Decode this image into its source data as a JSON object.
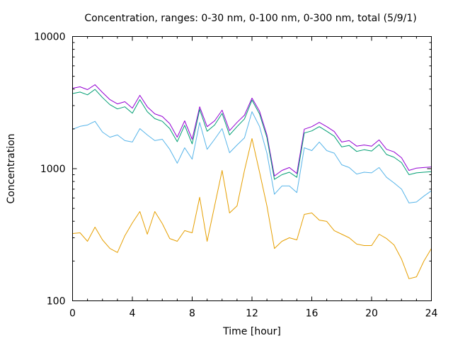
{
  "chart_data": {
    "type": "line",
    "title": "Concentration, ranges: 0-30 nm, 0-100 nm, 0-300 nm, total (5/9/1)",
    "xlabel": "Time [hour]",
    "ylabel": "Concentration",
    "xlim": [
      0,
      24
    ],
    "ylim": [
      100,
      10000
    ],
    "yscale": "log",
    "grid": false,
    "legend": "none",
    "x_ticks": [
      "0",
      "4",
      "8",
      "12",
      "16",
      "20",
      "24"
    ],
    "y_ticks": [
      "100",
      "1000",
      "10000"
    ],
    "x": [
      0,
      0.5,
      1,
      1.5,
      2,
      2.5,
      3,
      3.5,
      4,
      4.5,
      5,
      5.5,
      6,
      6.5,
      7,
      7.5,
      8,
      8.5,
      9,
      9.5,
      10,
      10.5,
      11,
      11.5,
      12,
      12.5,
      13,
      13.5,
      14,
      14.5,
      15,
      15.5,
      16,
      16.5,
      17,
      17.5,
      18,
      18.5,
      19,
      19.5,
      20,
      20.5,
      21,
      21.5,
      22,
      22.5,
      23,
      23.5,
      24
    ],
    "series": [
      {
        "name": "total",
        "color": "#9400d3",
        "values": [
          4060,
          4160,
          3960,
          4320,
          3770,
          3330,
          3090,
          3210,
          2870,
          3590,
          2940,
          2600,
          2480,
          2190,
          1730,
          2300,
          1670,
          2940,
          2080,
          2300,
          2770,
          1940,
          2240,
          2540,
          3420,
          2730,
          1800,
          880,
          970,
          1020,
          920,
          1990,
          2080,
          2240,
          2080,
          1910,
          1590,
          1630,
          1480,
          1510,
          1480,
          1650,
          1400,
          1340,
          1210,
          970,
          1010,
          1020,
          1030
        ]
      },
      {
        "name": "0-300 nm",
        "color": "#009e73",
        "values": [
          3700,
          3800,
          3620,
          3980,
          3450,
          3050,
          2830,
          2940,
          2630,
          3330,
          2700,
          2390,
          2280,
          2010,
          1600,
          2130,
          1540,
          2800,
          1920,
          2140,
          2620,
          1800,
          2080,
          2380,
          3300,
          2600,
          1720,
          830,
          900,
          940,
          860,
          1860,
          1930,
          2080,
          1920,
          1760,
          1460,
          1500,
          1350,
          1390,
          1360,
          1520,
          1280,
          1220,
          1110,
          900,
          930,
          940,
          950
        ]
      },
      {
        "name": "0-100 nm",
        "color": "#56b4e9",
        "values": [
          1985,
          2090,
          2140,
          2280,
          1890,
          1730,
          1800,
          1630,
          1590,
          2010,
          1800,
          1630,
          1670,
          1400,
          1100,
          1440,
          1180,
          2240,
          1400,
          1670,
          2010,
          1320,
          1510,
          1710,
          2700,
          2090,
          1310,
          640,
          740,
          740,
          660,
          1440,
          1370,
          1590,
          1370,
          1310,
          1070,
          1020,
          910,
          940,
          930,
          1020,
          860,
          780,
          700,
          550,
          560,
          620,
          680
        ]
      },
      {
        "name": "0-30 nm",
        "color": "#e69f00",
        "values": [
          323,
          327,
          282,
          361,
          289,
          249,
          232,
          311,
          389,
          474,
          319,
          474,
          384,
          296,
          282,
          340,
          327,
          607,
          282,
          523,
          970,
          462,
          523,
          970,
          1690,
          946,
          523,
          249,
          282,
          300,
          289,
          451,
          462,
          408,
          399,
          340,
          319,
          300,
          269,
          262,
          262,
          319,
          296,
          265,
          207,
          147,
          152,
          200,
          249
        ]
      }
    ]
  }
}
